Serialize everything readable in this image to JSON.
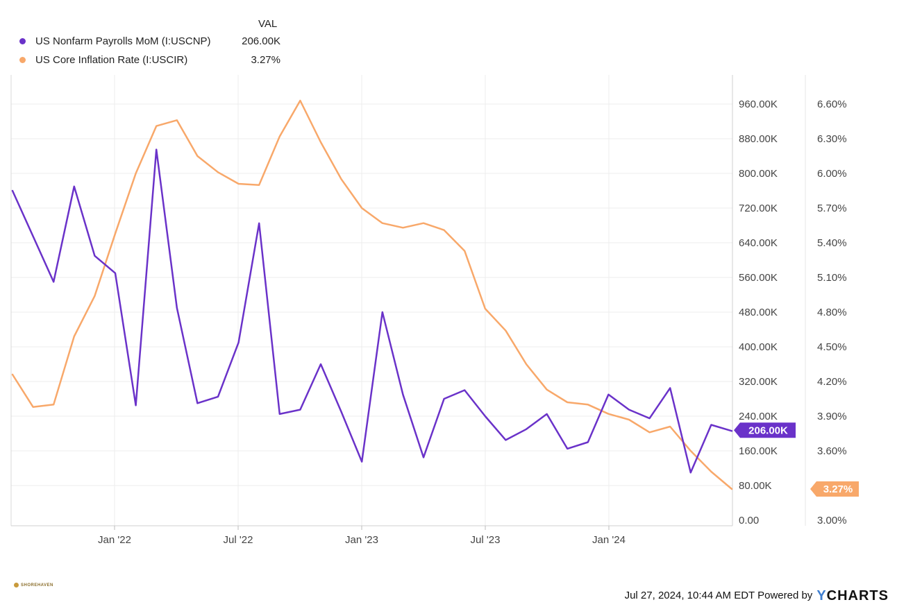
{
  "legend": {
    "header": "VAL",
    "items": [
      {
        "label": "US Nonfarm Payrolls MoM (I:USCNP)",
        "value": "206.00K",
        "color": "#6a32c9"
      },
      {
        "label": "US Core Inflation Rate (I:USCIR)",
        "value": "3.27%",
        "color": "#f8a86a"
      }
    ]
  },
  "footer": {
    "timestamp": "Jul 27, 2024, 10:44 AM EDT Powered by",
    "brand_y": "Y",
    "brand_rest": "CHARTS",
    "logo_text": "SHOREHAVEN"
  },
  "chart_data": {
    "type": "line",
    "x_tick_labels": [
      "Jan '22",
      "Jul '22",
      "Jan '23",
      "Jul '23",
      "Jan '24"
    ],
    "left_axis": {
      "ticks": [
        "0.00",
        "80.00K",
        "160.00K",
        "240.00K",
        "320.00K",
        "400.00K",
        "480.00K",
        "560.00K",
        "640.00K",
        "720.00K",
        "800.00K",
        "880.00K",
        "960.00K"
      ],
      "range": [
        0,
        1000000
      ]
    },
    "right_axis": {
      "ticks": [
        "3.00%",
        "3.30%",
        "3.60%",
        "3.90%",
        "4.20%",
        "4.50%",
        "4.80%",
        "5.10%",
        "5.40%",
        "5.70%",
        "6.00%",
        "6.30%",
        "6.60%"
      ],
      "range": [
        3.0,
        6.6
      ]
    },
    "x": [
      "2021-07",
      "2021-08",
      "2021-09",
      "2021-10",
      "2021-11",
      "2021-12",
      "2022-01",
      "2022-02",
      "2022-03",
      "2022-04",
      "2022-05",
      "2022-06",
      "2022-07",
      "2022-08",
      "2022-09",
      "2022-10",
      "2022-11",
      "2022-12",
      "2023-01",
      "2023-02",
      "2023-03",
      "2023-04",
      "2023-05",
      "2023-06",
      "2023-07",
      "2023-08",
      "2023-09",
      "2023-10",
      "2023-11",
      "2023-12",
      "2024-01",
      "2024-02",
      "2024-03",
      "2024-04",
      "2024-05",
      "2024-06"
    ],
    "series": [
      {
        "name": "US Nonfarm Payrolls MoM (I:USCNP)",
        "axis": "left",
        "color": "#6a32c9",
        "last_value_label": "206.00K",
        "values": [
          760000,
          655000,
          550000,
          770000,
          610000,
          570000,
          265000,
          855000,
          490000,
          270000,
          285000,
          410000,
          685000,
          245000,
          255000,
          360000,
          250000,
          135000,
          480000,
          290000,
          145000,
          280000,
          300000,
          240000,
          185000,
          210000,
          245000,
          165000,
          180000,
          290000,
          255000,
          235000,
          305000,
          110000,
          220000,
          206000
        ]
      },
      {
        "name": "US Core Inflation Rate (I:USCIR)",
        "axis": "right",
        "color": "#f8a86a",
        "last_value_label": "3.27%",
        "values": [
          4.26,
          3.98,
          4.0,
          4.59,
          4.94,
          5.48,
          6.0,
          6.41,
          6.46,
          6.15,
          6.01,
          5.91,
          5.9,
          6.32,
          6.63,
          6.27,
          5.95,
          5.7,
          5.57,
          5.53,
          5.57,
          5.51,
          5.33,
          4.83,
          4.64,
          4.35,
          4.13,
          4.02,
          4.0,
          3.92,
          3.87,
          3.76,
          3.81,
          3.6,
          3.42,
          3.27
        ]
      }
    ]
  }
}
